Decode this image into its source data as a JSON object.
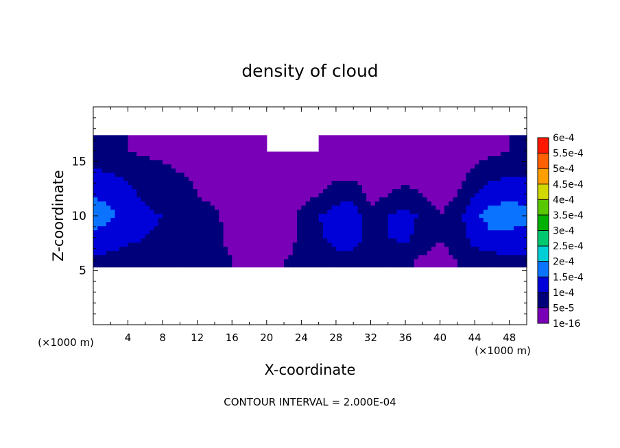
{
  "chart_data": {
    "type": "heatmap",
    "title": "density of cloud",
    "xlabel": "X-coordinate",
    "ylabel": "Z-coordinate",
    "x_unit": "(×1000 m)",
    "y_unit": "(×1000 m)",
    "xlim": [
      0,
      50
    ],
    "ylim": [
      0,
      20
    ],
    "x_ticks": [
      4,
      8,
      12,
      16,
      20,
      24,
      28,
      32,
      36,
      40,
      44,
      48
    ],
    "y_ticks": [
      5,
      10,
      15
    ],
    "footer": "CONTOUR INTERVAL = 2.000E-04",
    "colorbar": {
      "levels": [
        "1e-16",
        "5e-5",
        "1e-4",
        "1.5e-4",
        "2e-4",
        "2.5e-4",
        "3e-4",
        "3.5e-4",
        "4e-4",
        "4.5e-4",
        "5e-4",
        "5.5e-4",
        "6e-4"
      ],
      "colors": [
        "#7a00b8",
        "#00007a",
        "#0000d8",
        "#0a73ff",
        "#00cfd8",
        "#00c870",
        "#00b000",
        "#58c800",
        "#d0d800",
        "#ffa000",
        "#ff6000",
        "#ff1800",
        "#ff7070"
      ]
    },
    "field": {
      "x": [
        0,
        2,
        4,
        6,
        8,
        10,
        12,
        14,
        16,
        18,
        20,
        22,
        24,
        26,
        28,
        30,
        32,
        34,
        36,
        38,
        40,
        42,
        44,
        46,
        48,
        50
      ],
      "z_bottom": 5.3,
      "z_top": 17.4,
      "rows": [
        {
          "z": 6,
          "values": [
            9e-05,
            9e-05,
            8e-05,
            7e-05,
            7e-05,
            6e-05,
            6e-05,
            6e-05,
            5e-05,
            1e-05,
            0.0,
            5e-05,
            6e-05,
            7e-05,
            8e-05,
            7e-05,
            5e-05,
            6e-05,
            6e-05,
            4e-05,
            3e-05,
            5e-05,
            7e-05,
            8e-05,
            9e-05,
            9e-05
          ]
        },
        {
          "z": 8,
          "values": [
            0.00013,
            0.00012,
            0.00011,
            0.0001,
            9e-05,
            8e-05,
            7e-05,
            6e-05,
            4e-05,
            1e-05,
            0.0,
            3e-05,
            6e-05,
            9e-05,
            0.00012,
            0.00013,
            7e-05,
            0.0001,
            0.00011,
            8e-05,
            5e-05,
            8e-05,
            0.00012,
            0.00014,
            0.00014,
            0.00013
          ]
        },
        {
          "z": 10,
          "values": [
            0.00018,
            0.00016,
            0.00013,
            0.00011,
            0.0001,
            9e-05,
            8e-05,
            6e-05,
            3e-05,
            0.0,
            2e-05,
            3e-05,
            6e-05,
            0.0001,
            0.00012,
            0.00013,
            6e-05,
            0.0001,
            0.00012,
            9e-05,
            5e-05,
            8e-05,
            0.00014,
            0.00017,
            0.00017,
            0.00016
          ]
        },
        {
          "z": 12,
          "values": [
            0.00015,
            0.00013,
            0.00011,
            9e-05,
            8e-05,
            7e-05,
            5e-05,
            3e-05,
            2e-05,
            1e-05,
            1e-05,
            2e-05,
            3e-05,
            5e-05,
            8e-05,
            9e-05,
            3e-05,
            5e-05,
            7e-05,
            5e-05,
            3e-05,
            5e-05,
            0.0001,
            0.00013,
            0.00014,
            0.00014
          ]
        },
        {
          "z": 14,
          "values": [
            0.00011,
            0.0001,
            9e-05,
            8e-05,
            7e-05,
            5e-05,
            4e-05,
            3e-05,
            3e-05,
            5e-05,
            4e-05,
            1e-05,
            1e-05,
            2e-05,
            3e-05,
            3e-05,
            1e-05,
            1e-05,
            2e-05,
            2e-05,
            1e-05,
            3e-05,
            6e-05,
            8e-05,
            9e-05,
            9e-05
          ]
        },
        {
          "z": 16,
          "values": [
            6e-05,
            6e-05,
            5e-05,
            4e-05,
            3e-05,
            2e-05,
            1e-05,
            1e-05,
            1e-05,
            1e-05,
            0.0,
            0.0,
            0.0,
            0.0,
            1e-05,
            1e-05,
            1e-05,
            1e-05,
            1e-05,
            1e-05,
            1e-05,
            2e-05,
            3e-05,
            4e-05,
            5e-05,
            5e-05
          ]
        }
      ]
    }
  }
}
